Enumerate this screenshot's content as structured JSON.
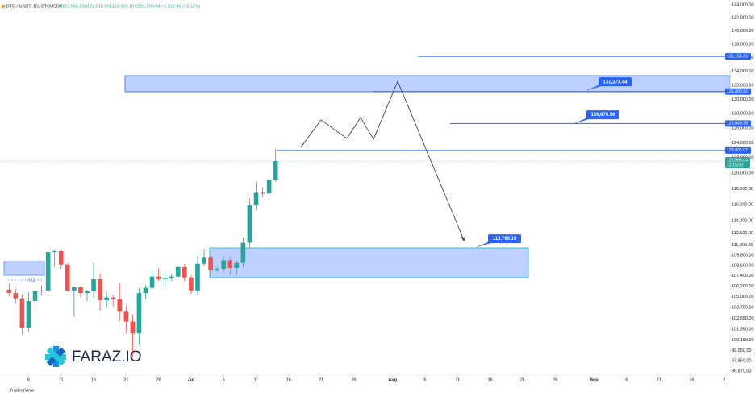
{
  "chart_data": {
    "type": "candlestick",
    "title": "BTC / USDT, 1D, BTCUSDT",
    "header": [
      "O119,086.65",
      "H123,218.00",
      "L118,905.18",
      "C121,599.04",
      "+2,512.40 (+2.11%)"
    ],
    "x": [
      3,
      4,
      5,
      6,
      7,
      8,
      9,
      10,
      11,
      12,
      13,
      14,
      15,
      16,
      17,
      18,
      19,
      20,
      21,
      22,
      23,
      24,
      25,
      26,
      27,
      28,
      29,
      30,
      31,
      32,
      33,
      34,
      35,
      36,
      37,
      38,
      39,
      40,
      41,
      42,
      43,
      44
    ],
    "open": [
      105800,
      105400,
      104800,
      101500,
      104500,
      105600,
      105700,
      110200,
      110300,
      108700,
      105700,
      106100,
      105400,
      105600,
      107000,
      104600,
      104900,
      104700,
      103300,
      102200,
      100900,
      105400,
      106000,
      107300,
      107000,
      107100,
      107300,
      108400,
      107200,
      105700,
      108800,
      109600,
      108000,
      108200,
      109200,
      108300,
      108900,
      111300,
      115900,
      117500,
      117400,
      119086.65
    ],
    "high": [
      106500,
      105900,
      105200,
      105500,
      105800,
      106300,
      110500,
      110400,
      110400,
      108900,
      106200,
      106200,
      105800,
      108900,
      107700,
      105500,
      105200,
      106500,
      104000,
      103000,
      106000,
      106300,
      108000,
      108300,
      107700,
      107600,
      108500,
      108800,
      107500,
      109700,
      110500,
      109700,
      108400,
      109700,
      109700,
      109200,
      111900,
      116800,
      118900,
      118200,
      119500,
      123218
    ],
    "low": [
      105000,
      104200,
      100800,
      101100,
      104000,
      105100,
      105300,
      108400,
      108200,
      105600,
      102700,
      104900,
      104500,
      104900,
      103400,
      103800,
      103900,
      102300,
      100900,
      98300,
      99600,
      104700,
      105900,
      106800,
      106200,
      106800,
      107200,
      106800,
      105300,
      105100,
      108500,
      107300,
      107800,
      107800,
      107500,
      107500,
      108400,
      110600,
      115300,
      116900,
      117200,
      118905.18
    ],
    "close": [
      105400,
      104800,
      101500,
      104500,
      105600,
      105700,
      110200,
      110300,
      108700,
      105700,
      106100,
      105400,
      105600,
      107000,
      104600,
      104900,
      104700,
      103300,
      102200,
      100900,
      105400,
      106000,
      107300,
      107000,
      107100,
      107300,
      108400,
      107200,
      105700,
      108800,
      109600,
      108000,
      108200,
      109200,
      108300,
      108900,
      111300,
      115900,
      117500,
      117400,
      119100,
      121599.04
    ],
    "up_color": "#26a69a",
    "down_color": "#ef5350",
    "log_scale": true,
    "ylim": [
      96450,
      144750
    ],
    "yticks": [
      {
        "value": 144000,
        "label": "144,000.00"
      },
      {
        "value": 142000,
        "label": "142,000.00"
      },
      {
        "value": 140000,
        "label": "140,000.00"
      },
      {
        "value": 138000,
        "label": "138,000.00"
      },
      {
        "value": 136000,
        "label": "136,000.00"
      },
      {
        "value": 134000,
        "label": "134,000.00"
      },
      {
        "value": 132000,
        "label": "132,000.00"
      },
      {
        "value": 130000,
        "label": "130,000.00"
      },
      {
        "value": 128000,
        "label": "128,000.00"
      },
      {
        "value": 126000,
        "label": "126,000.00"
      },
      {
        "value": 124000,
        "label": "124,000.00"
      },
      {
        "value": 122000,
        "label": "122,000.00"
      },
      {
        "value": 120000,
        "label": "120,000.00"
      },
      {
        "value": 118000,
        "label": "118,000.00"
      },
      {
        "value": 116000,
        "label": "116,000.00"
      },
      {
        "value": 114000,
        "label": "114,000.00"
      },
      {
        "value": 112500,
        "label": "112,500.00"
      },
      {
        "value": 111000,
        "label": "111,000.00"
      },
      {
        "value": 109800,
        "label": "109,800.00"
      },
      {
        "value": 108600,
        "label": "108,600.00"
      },
      {
        "value": 107400,
        "label": "107,400.00"
      },
      {
        "value": 106200,
        "label": "106,200.00"
      },
      {
        "value": 105000,
        "label": "105,000.00"
      },
      {
        "value": 103750,
        "label": "103,750.00"
      },
      {
        "value": 102550,
        "label": "102,550.00"
      },
      {
        "value": 101350,
        "label": "101,350.00"
      },
      {
        "value": 100150,
        "label": "100,150.00"
      },
      {
        "value": 99050,
        "label": "99,050.00"
      },
      {
        "value": 97950,
        "label": "97,950.00"
      },
      {
        "value": 96870,
        "label": "96,870.00"
      }
    ],
    "xlim": [
      1.6,
      113.9
    ],
    "xticks": [
      6,
      11,
      16,
      21,
      26,
      {
        "value": 31,
        "label": "Jul"
      },
      {
        "value": 36,
        "label": "6"
      },
      {
        "value": 41,
        "label": "11"
      },
      {
        "value": 46,
        "label": "16"
      },
      {
        "value": 51,
        "label": "21"
      },
      {
        "value": 56,
        "label": "26"
      },
      {
        "value": 62,
        "label": "Aug"
      },
      {
        "value": 67,
        "label": "6"
      },
      {
        "value": 72,
        "label": "11"
      },
      {
        "value": 77,
        "label": "16"
      },
      {
        "value": 82,
        "label": "21"
      },
      {
        "value": 87,
        "label": "26"
      },
      {
        "value": 93,
        "label": "Sep"
      },
      {
        "value": 98,
        "label": "6"
      },
      {
        "value": 103,
        "label": "11"
      },
      {
        "value": 108,
        "label": "16"
      },
      {
        "value": 113,
        "label": "2"
      }
    ],
    "levels": [
      {
        "value": 136164.6,
        "label": "136,164.60"
      },
      {
        "value": 131089.62,
        "label": "131,089.62"
      },
      {
        "value": 126649.35,
        "label": "126,649.35"
      },
      {
        "value": 123005.07,
        "label": "123,005.07"
      }
    ],
    "callouts": [
      {
        "value": 131273.44,
        "label": "131,273.44"
      },
      {
        "value": 126676.56,
        "label": "126,676.56"
      },
      {
        "value": 110766.19,
        "label": "110,766.19"
      }
    ],
    "last_price": {
      "value": 121599.04,
      "label": "121,599.04",
      "countdown": "12:15:00"
    },
    "zone_label": "LQ",
    "watermark": "FARAZ.IO",
    "footer": "TradingView"
  }
}
